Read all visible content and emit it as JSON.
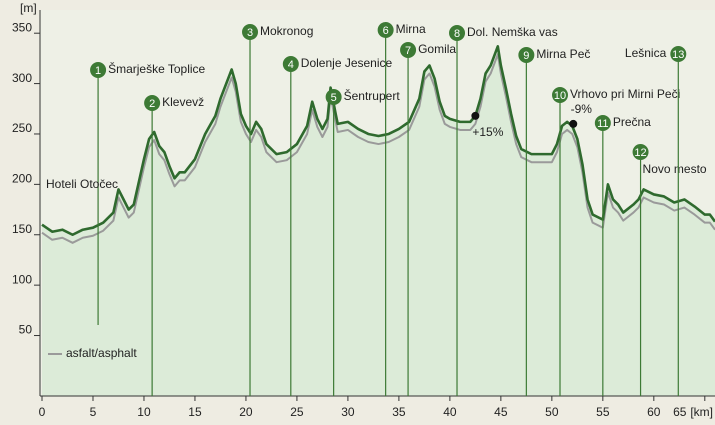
{
  "chart_data": {
    "type": "area",
    "y_label": "[m]",
    "x_label": "[km]",
    "xlim": [
      0,
      66
    ],
    "ylim": [
      -10,
      375
    ],
    "xticks": [
      0,
      5,
      10,
      15,
      20,
      25,
      30,
      35,
      40,
      45,
      50,
      55,
      60,
      65
    ],
    "yticks": [
      50,
      100,
      150,
      200,
      250,
      300,
      350
    ],
    "x": [
      0,
      1,
      2,
      3,
      4,
      5,
      6,
      7,
      7.5,
      8,
      8.5,
      9,
      10,
      10.5,
      11,
      11.5,
      12,
      12.5,
      13,
      13.5,
      14,
      15,
      16,
      17,
      17.5,
      18.6,
      19,
      19.5,
      20,
      20.5,
      21,
      21.5,
      22,
      23,
      24,
      25,
      26,
      26.5,
      27,
      27.5,
      28,
      28.3,
      28.8,
      29,
      30,
      31,
      32,
      33,
      34,
      35,
      36,
      37,
      37.5,
      38,
      38.5,
      39,
      39.5,
      40,
      41,
      42,
      42.5,
      43,
      43.5,
      44,
      44.7,
      45,
      45.5,
      46,
      46.5,
      47,
      48,
      49,
      50,
      50.5,
      51,
      51.5,
      52,
      52.5,
      53,
      53.5,
      54,
      55,
      55.5,
      56,
      56.5,
      57,
      58,
      58.5,
      59,
      60,
      61,
      62,
      63,
      64,
      65,
      65.5,
      66
    ],
    "series": [
      {
        "color": "#2f6a2e",
        "values": [
          160,
          153,
          155,
          150,
          155,
          157,
          162,
          172,
          195,
          185,
          175,
          180,
          225,
          245,
          252,
          238,
          232,
          218,
          206,
          212,
          212,
          225,
          250,
          268,
          285,
          314,
          300,
          270,
          258,
          250,
          262,
          255,
          240,
          230,
          232,
          240,
          258,
          282,
          265,
          255,
          265,
          296,
          270,
          260,
          262,
          255,
          250,
          248,
          250,
          255,
          262,
          285,
          312,
          318,
          305,
          282,
          268,
          265,
          262,
          262,
          268,
          285,
          310,
          318,
          337,
          318,
          295,
          270,
          248,
          235,
          230,
          230,
          230,
          240,
          258,
          262,
          258,
          245,
          220,
          185,
          170,
          165,
          200,
          185,
          180,
          172,
          180,
          185,
          195,
          190,
          188,
          182,
          185,
          178,
          170,
          170,
          163
        ]
      },
      {
        "name": "asfalt/asphalt",
        "color": "#9a9a9a",
        "values": [
          152,
          145,
          147,
          142,
          147,
          149,
          154,
          164,
          187,
          177,
          167,
          172,
          217,
          237,
          244,
          230,
          224,
          210,
          198,
          204,
          204,
          217,
          242,
          260,
          277,
          306,
          292,
          262,
          250,
          242,
          254,
          247,
          232,
          222,
          224,
          232,
          250,
          274,
          257,
          247,
          257,
          288,
          262,
          252,
          254,
          247,
          242,
          240,
          242,
          247,
          254,
          277,
          304,
          310,
          297,
          274,
          260,
          257,
          254,
          254,
          260,
          277,
          302,
          310,
          329,
          310,
          287,
          262,
          240,
          227,
          222,
          222,
          222,
          232,
          250,
          254,
          250,
          237,
          212,
          177,
          162,
          157,
          192,
          177,
          172,
          164,
          172,
          177,
          187,
          182,
          180,
          174,
          177,
          170,
          162,
          162,
          155
        ]
      }
    ],
    "waypoints": [
      {
        "number": 1,
        "label": "Šmarješke Toplice",
        "km": 5.5
      },
      {
        "number": 2,
        "label": "Klevevž",
        "km": 10.8
      },
      {
        "number": 3,
        "label": "Mokronog",
        "km": 20.4
      },
      {
        "number": 4,
        "label": "Dolenje Jesenice",
        "km": 24.4
      },
      {
        "number": 5,
        "label": "Šentrupert",
        "km": 28.6
      },
      {
        "number": 6,
        "label": "Mirna",
        "km": 33.7
      },
      {
        "number": 7,
        "label": "Gomila",
        "km": 35.9
      },
      {
        "number": 8,
        "label": "Dol. Nemška vas",
        "km": 40.7
      },
      {
        "number": 9,
        "label": "Mirna Peč",
        "km": 47.5
      },
      {
        "number": 10,
        "label": "Vrhovo pri Mirni Peči",
        "km": 50.8
      },
      {
        "number": 11,
        "label": "Prečna",
        "km": 55
      },
      {
        "number": 12,
        "label": "Novo mesto",
        "km": 58.7
      },
      {
        "number": 13,
        "label": "Lešnica",
        "km": 62.4
      }
    ],
    "gradients": [
      {
        "km": 42.5,
        "elevation": 268,
        "label": "+15%"
      },
      {
        "km": 52.1,
        "elevation": 260,
        "label": "-9%"
      }
    ],
    "start_label": "Hoteli Otočec"
  }
}
